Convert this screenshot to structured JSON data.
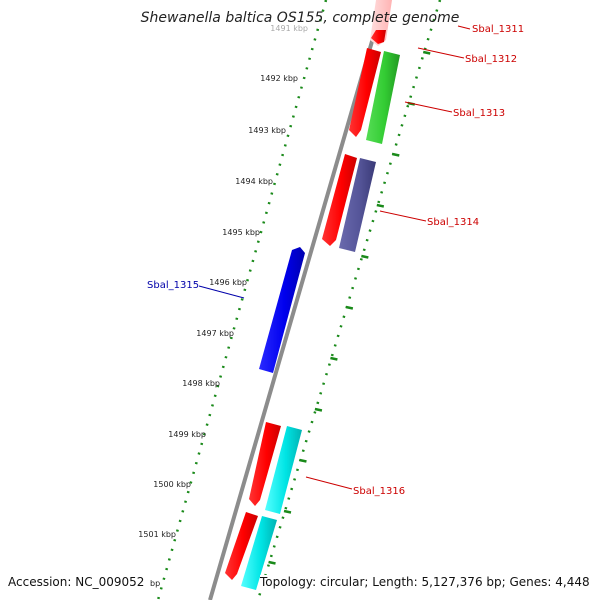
{
  "title": "Shewanella baltica OS155, complete genome",
  "footer": {
    "accession": "Accession: NC_009052",
    "stats": "Topology: circular; Length: 5,127,376 bp; Genes: 4,448",
    "partial_unit": "bp"
  },
  "ticks": [
    {
      "label": "1491 kbp",
      "faded": true
    },
    {
      "label": "1492 kbp"
    },
    {
      "label": "1493 kbp"
    },
    {
      "label": "1494 kbp"
    },
    {
      "label": "1495 kbp"
    },
    {
      "label": "1496 kbp"
    },
    {
      "label": "1497 kbp"
    },
    {
      "label": "1498 kbp"
    },
    {
      "label": "1499 kbp"
    },
    {
      "label": "1500 kbp"
    },
    {
      "label": "1501 kbp"
    }
  ],
  "genes": [
    {
      "name": "Sbal_1311",
      "color": "#cc0000"
    },
    {
      "name": "Sbal_1312",
      "color": "#cc0000"
    },
    {
      "name": "Sbal_1313",
      "color": "#cc0000"
    },
    {
      "name": "Sbal_1314",
      "color": "#cc0000"
    },
    {
      "name": "Sbal_1315",
      "color": "#0000aa"
    },
    {
      "name": "Sbal_1316",
      "color": "#cc0000"
    }
  ],
  "colors": {
    "cds": "#ff0000",
    "green_feature": "#33cc33",
    "purple_feature": "#555599",
    "blue_feature": "#0000ee",
    "cyan_feature": "#00e5e5",
    "backbone": "#8c8c8c",
    "tick_dots": "#1a8a1a"
  }
}
